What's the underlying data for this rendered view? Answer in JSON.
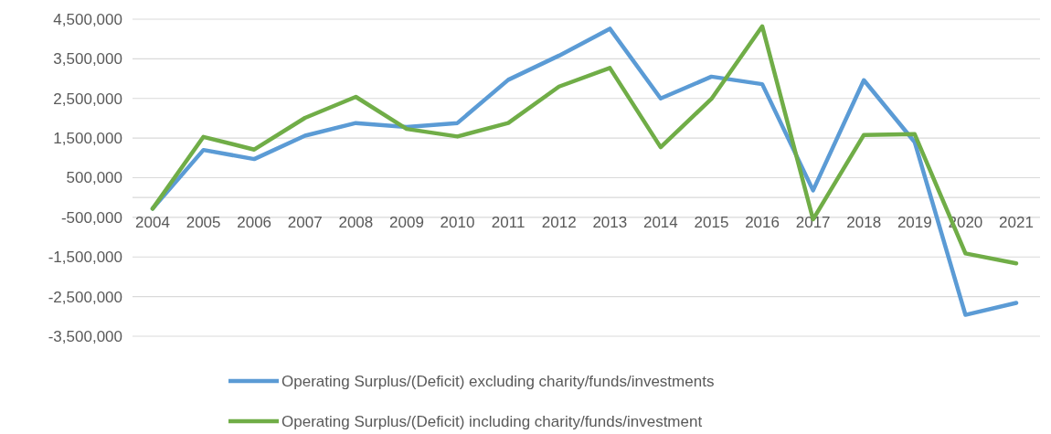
{
  "chart_data": {
    "type": "line",
    "categories": [
      "2004",
      "2005",
      "2006",
      "2007",
      "2008",
      "2009",
      "2010",
      "2011",
      "2012",
      "2013",
      "2014",
      "2015",
      "2016",
      "2017",
      "2018",
      "2019",
      "2020",
      "2021"
    ],
    "series": [
      {
        "name": "Operating Surplus/(Deficit) excluding charity/funds/investments",
        "color": "#5b9bd5",
        "values": [
          -280000,
          1200000,
          970000,
          1560000,
          1880000,
          1780000,
          1880000,
          2970000,
          3580000,
          4260000,
          2500000,
          3050000,
          2860000,
          180000,
          2960000,
          1400000,
          -2960000,
          -2660000
        ]
      },
      {
        "name": "Operating Surplus/(Deficit) including charity/funds/investment",
        "color": "#70ad47",
        "values": [
          -280000,
          1530000,
          1210000,
          2010000,
          2540000,
          1730000,
          1540000,
          1880000,
          2800000,
          3270000,
          1270000,
          2490000,
          4320000,
          -550000,
          1580000,
          1600000,
          -1410000,
          -1660000
        ]
      }
    ],
    "ylim": [
      -3500000,
      4500000
    ],
    "yticks": [
      {
        "value": 4500000,
        "label": "4,500,000"
      },
      {
        "value": 3500000,
        "label": "3,500,000"
      },
      {
        "value": 2500000,
        "label": "2,500,000"
      },
      {
        "value": 1500000,
        "label": "1,500,000"
      },
      {
        "value": 500000,
        "label": "500,000"
      },
      {
        "value": -500000,
        "label": "-500,000"
      },
      {
        "value": -1500000,
        "label": "-1,500,000"
      },
      {
        "value": -2500000,
        "label": "-2,500,000"
      },
      {
        "value": -3500000,
        "label": "-3,500,000"
      }
    ],
    "grid": "y",
    "legend": "bottom",
    "marker": "none",
    "line_style": "solid"
  }
}
